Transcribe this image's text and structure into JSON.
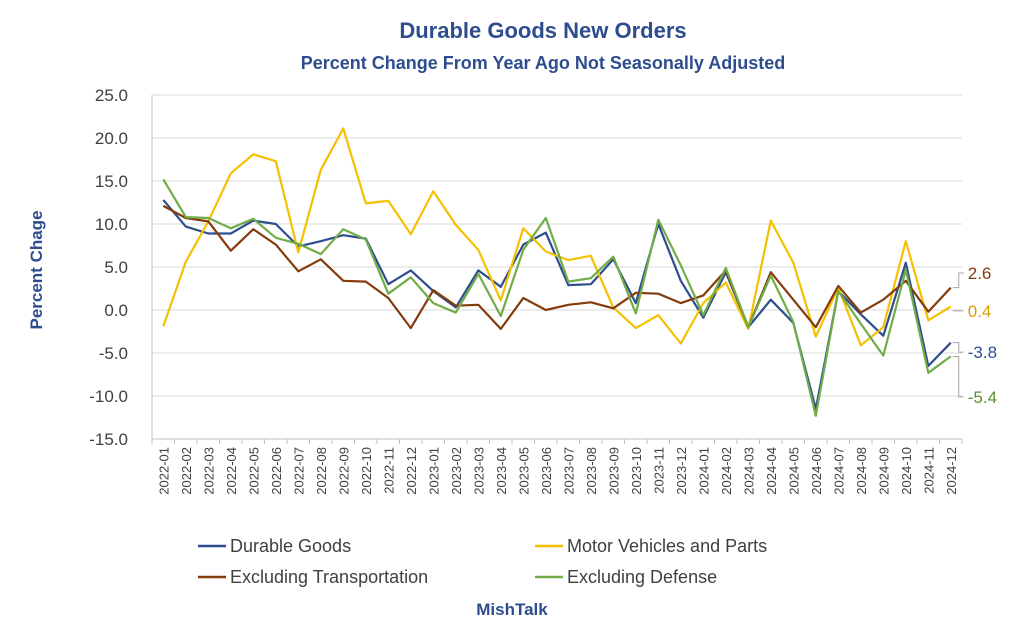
{
  "chart_data": {
    "type": "line",
    "title": "Durable Goods New Orders",
    "subtitle": "Percent Change From Year Ago Not Seasonally Adjusted",
    "ylabel": "Percent Chage",
    "xlabel": "",
    "source": "MishTalk",
    "ylim": [
      -15,
      25
    ],
    "ytick_step": 5,
    "ytick_labels": [
      "25.0",
      "20.0",
      "15.0",
      "10.0",
      "5.0",
      "0.0",
      "-5.0",
      "-10.0",
      "-15.0"
    ],
    "grid": true,
    "legend_placement": "bottom",
    "categories": [
      "2022-01",
      "2022-02",
      "2022-03",
      "2022-04",
      "2022-05",
      "2022-06",
      "2022-07",
      "2022-08",
      "2022-09",
      "2022-10",
      "2022-11",
      "2022-12",
      "2023-01",
      "2023-02",
      "2023-03",
      "2023-04",
      "2023-05",
      "2023-06",
      "2023-07",
      "2023-08",
      "2023-09",
      "2023-10",
      "2023-11",
      "2023-12",
      "2024-01",
      "2024-02",
      "2024-03",
      "2024-04",
      "2024-05",
      "2024-06",
      "2024-07",
      "2024-08",
      "2024-09",
      "2024-10",
      "2024-11",
      "2024-12"
    ],
    "series": [
      {
        "name": "Durable Goods",
        "color": "#2e4d8f",
        "label_color": "#2e4d8f",
        "end_label": "-3.8",
        "values": [
          12.8,
          9.7,
          8.9,
          8.9,
          10.4,
          10.0,
          7.4,
          8.0,
          8.7,
          8.3,
          3.0,
          4.6,
          2.2,
          0.3,
          4.6,
          2.7,
          7.6,
          9.0,
          2.9,
          3.0,
          5.9,
          0.8,
          10.0,
          3.4,
          -0.9,
          4.4,
          -2.0,
          1.2,
          -1.5,
          -11.5,
          2.2,
          -0.5,
          -3.0,
          5.5,
          -6.5,
          -3.8
        ]
      },
      {
        "name": "Motor Vehicles and Parts",
        "color": "#f5c000",
        "label_color": "#d4a000",
        "end_label": "0.4",
        "values": [
          -1.9,
          5.6,
          10.3,
          15.9,
          18.1,
          17.3,
          6.7,
          16.3,
          21.1,
          12.4,
          12.7,
          8.8,
          13.8,
          9.9,
          7.0,
          1.1,
          9.5,
          6.8,
          5.8,
          6.3,
          0.3,
          -2.1,
          -0.6,
          -3.9,
          0.8,
          3.2,
          -2.2,
          10.4,
          5.5,
          -3.1,
          2.6,
          -4.1,
          -2.0,
          8.0,
          -1.2,
          0.4
        ]
      },
      {
        "name": "Excluding Transportation",
        "color": "#843c0c",
        "label_color": "#843c0c",
        "end_label": "2.6",
        "values": [
          12.1,
          10.7,
          10.3,
          6.9,
          9.4,
          7.6,
          4.5,
          5.9,
          3.4,
          3.3,
          1.4,
          -2.1,
          2.3,
          0.5,
          0.6,
          -2.2,
          1.4,
          0.0,
          0.6,
          0.9,
          0.2,
          2.0,
          1.9,
          0.8,
          1.7,
          4.6,
          -2.0,
          4.4,
          1.2,
          -2.0,
          2.8,
          -0.3,
          1.2,
          3.4,
          -0.2,
          2.6
        ]
      },
      {
        "name": "Excluding Defense",
        "color": "#70ad47",
        "label_color": "#5a8f2f",
        "end_label": "-5.4",
        "values": [
          15.2,
          10.8,
          10.7,
          9.5,
          10.6,
          8.4,
          7.7,
          6.5,
          9.4,
          8.2,
          1.9,
          3.8,
          0.8,
          -0.3,
          4.2,
          -0.7,
          7.0,
          10.7,
          3.3,
          3.7,
          6.2,
          -0.4,
          10.5,
          5.2,
          -0.6,
          4.9,
          -2.0,
          4.0,
          -1.4,
          -12.3,
          2.2,
          -1.6,
          -5.3,
          4.7,
          -7.3,
          -5.4
        ]
      }
    ]
  }
}
